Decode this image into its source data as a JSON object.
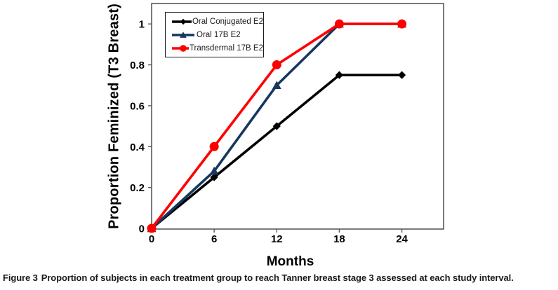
{
  "figure": {
    "caption_label": "Figure 3",
    "caption_text": "Proportion of subjects in each treatment group to reach Tanner breast stage 3 assessed at each study interval."
  },
  "chart_data": {
    "type": "line",
    "xlabel": "Months",
    "ylabel": "Proportion Feminized (T3 Breast)",
    "x": [
      0,
      6,
      12,
      18,
      24
    ],
    "xtick_labels": [
      "0",
      "6",
      "12",
      "18",
      "24"
    ],
    "yticks": [
      0,
      0.2,
      0.4,
      0.6,
      0.8,
      1
    ],
    "ytick_labels": [
      "0",
      "0.2",
      "0.4",
      "0.6",
      "0.8",
      "1"
    ],
    "xlim": [
      0,
      28
    ],
    "ylim": [
      0,
      1.1
    ],
    "grid": false,
    "legend_position": "top-left-inside",
    "axis_color": "#595959",
    "series": [
      {
        "name": "Oral Conjugated E2",
        "color": "#000000",
        "marker": "diamond",
        "values": [
          0,
          0.25,
          0.5,
          0.75,
          0.75
        ]
      },
      {
        "name": "Oral 17B E2",
        "color": "#17375E",
        "marker": "triangle",
        "values": [
          0,
          0.28,
          0.7,
          1,
          1
        ]
      },
      {
        "name": "Transdermal 17B E2",
        "color": "#FE0000",
        "marker": "circle",
        "values": [
          0,
          0.4,
          0.8,
          1,
          1
        ]
      }
    ]
  }
}
